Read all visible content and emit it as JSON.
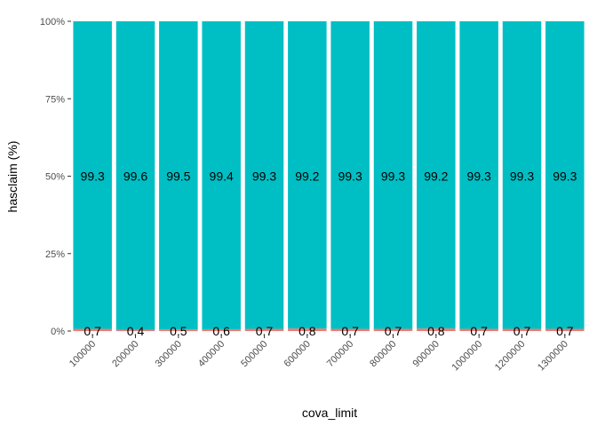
{
  "chart_data": {
    "type": "bar",
    "stacked": true,
    "percent": true,
    "xlabel": "cova_limit",
    "ylabel": "hasclaim  (%)",
    "ylim": [
      0,
      100
    ],
    "yticks": [
      "0%",
      "25%",
      "50%",
      "75%",
      "100%"
    ],
    "ytick_values": [
      0,
      25,
      50,
      75,
      100
    ],
    "categories": [
      "100000",
      "200000",
      "300000",
      "400000",
      "500000",
      "600000",
      "700000",
      "800000",
      "900000",
      "1000000",
      "1200000",
      "1300000"
    ],
    "series": [
      {
        "values": [
          0.7,
          0.4,
          0.5,
          0.6,
          0.7,
          0.8,
          0.7,
          0.7,
          0.8,
          0.7,
          0.7,
          0.7
        ],
        "labels": [
          "0.7",
          "0.4",
          "0.5",
          "0.6",
          "0.7",
          "0.8",
          "0.7",
          "0.7",
          "0.8",
          "0.7",
          "0.7",
          "0.7"
        ],
        "color": "#f8766d"
      },
      {
        "values": [
          99.3,
          99.6,
          99.5,
          99.4,
          99.3,
          99.2,
          99.3,
          99.3,
          99.2,
          99.3,
          99.3,
          99.3
        ],
        "labels": [
          "99.3",
          "99.6",
          "99.5",
          "99.4",
          "99.3",
          "99.2",
          "99.3",
          "99.3",
          "99.2",
          "99.3",
          "99.3",
          "99.3"
        ],
        "color": "#00bfc4"
      }
    ],
    "grid": false,
    "legend": "none"
  }
}
